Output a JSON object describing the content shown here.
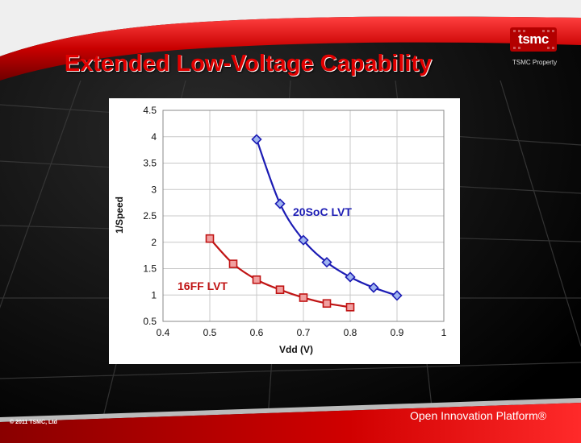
{
  "slide": {
    "title": "Extended Low-Voltage Capability",
    "logo_text": "tsmc",
    "property_label": "TSMC Property",
    "copyright": "© 2011 TSMC, Ltd",
    "platform": "Open Innovation Platform®"
  },
  "colors": {
    "title": "#e00000",
    "series_20soc": "#1c1cb4",
    "series_16ff": "#c01414",
    "marker_20soc_fill": "#9fb4f0",
    "marker_16ff_fill": "#f0a0a0"
  },
  "chart_data": {
    "type": "line",
    "xlabel": "Vdd (V)",
    "ylabel": "1/Speed",
    "xlim": [
      0.4,
      1.0
    ],
    "ylim": [
      0.5,
      4.5
    ],
    "xticks": [
      "0.4",
      "0.5",
      "0.6",
      "0.7",
      "0.8",
      "0.9",
      "1"
    ],
    "yticks": [
      "0.5",
      "1",
      "1.5",
      "2",
      "2.5",
      "3",
      "3.5",
      "4",
      "4.5"
    ],
    "grid": true,
    "series": [
      {
        "name": "20SoC LVT",
        "marker": "diamond",
        "x": [
          0.6,
          0.65,
          0.7,
          0.75,
          0.8,
          0.85,
          0.9
        ],
        "y": [
          3.95,
          2.73,
          2.04,
          1.62,
          1.34,
          1.14,
          0.99
        ]
      },
      {
        "name": "16FF LVT",
        "marker": "square",
        "x": [
          0.5,
          0.55,
          0.6,
          0.65,
          0.7,
          0.75,
          0.8
        ],
        "y": [
          2.07,
          1.59,
          1.29,
          1.1,
          0.95,
          0.84,
          0.77
        ]
      }
    ]
  }
}
